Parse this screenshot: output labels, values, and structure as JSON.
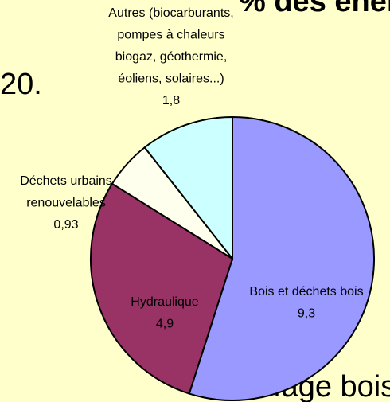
{
  "slide_text": [
    "% des énergies",
    "20.",
    "uffage bois"
  ],
  "chart_data": {
    "type": "pie",
    "categories": [
      [
        "Bois et déchets bois"
      ],
      [
        "Hydraulique"
      ],
      [
        "Déchets urbains",
        "renouvelables"
      ],
      [
        "Autres (biocarburants,",
        "pompes à chaleurs",
        "biogaz, géothermie,",
        "éoliens, solaires...)"
      ]
    ],
    "values": [
      9.3,
      4.9,
      0.93,
      1.8
    ],
    "value_labels": [
      "9,3",
      "4,9",
      "0,93",
      "1,8"
    ],
    "colors": [
      "#9999ff",
      "#993366",
      "#ffffee",
      "#ccffff"
    ]
  }
}
